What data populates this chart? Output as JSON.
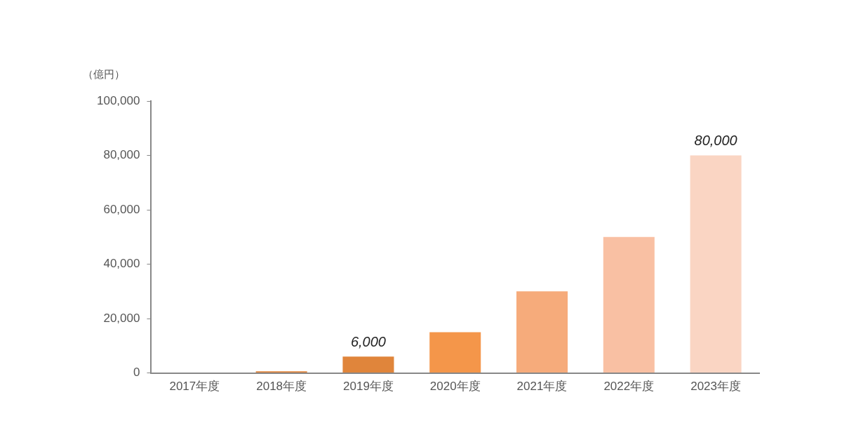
{
  "chart_data": {
    "type": "bar",
    "ylabel": "（億円）",
    "categories": [
      "2017年度",
      "2018年度",
      "2019年度",
      "2020年度",
      "2021年度",
      "2022年度",
      "2023年度"
    ],
    "values": [
      0,
      600,
      6000,
      15000,
      30000,
      50000,
      80000
    ],
    "colors": [
      "#e0853b",
      "#e0853b",
      "#e0853b",
      "#f4964a",
      "#f6ab7b",
      "#f9c0a3",
      "#fad5c3"
    ],
    "value_labels": [
      null,
      null,
      "6,000",
      null,
      null,
      null,
      "80,000"
    ],
    "ylim": [
      0,
      100000
    ],
    "yticks": [
      {
        "value": 0,
        "label": "0"
      },
      {
        "value": 20000,
        "label": "20,000"
      },
      {
        "value": 40000,
        "label": "40,000"
      },
      {
        "value": 60000,
        "label": "60,000"
      },
      {
        "value": 80000,
        "label": "80,000"
      },
      {
        "value": 100000,
        "label": "100,000"
      }
    ],
    "grid": false,
    "legend": false
  }
}
